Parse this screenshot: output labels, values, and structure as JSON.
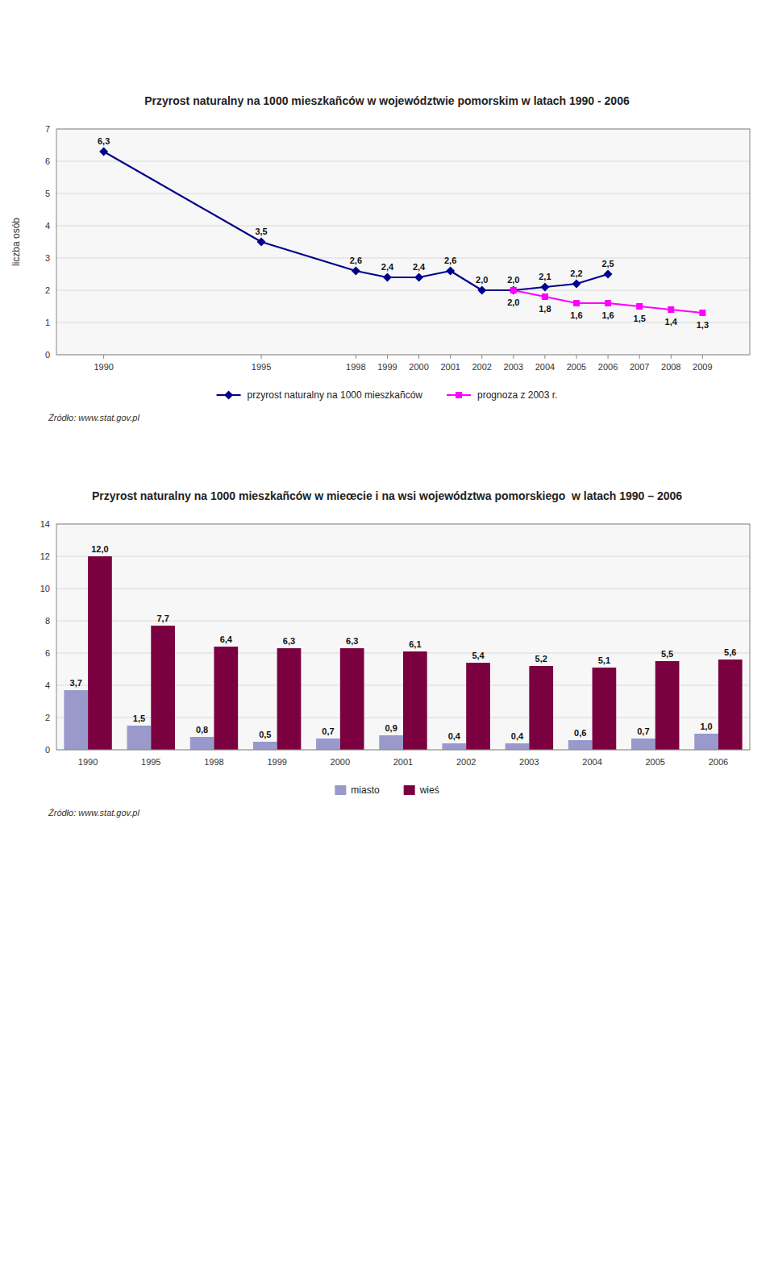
{
  "chart_data": [
    {
      "type": "line",
      "title": "Przyrost naturalny na 1000 mieszkañców w województwie pomorskim w latach 1990 - 2006",
      "y_label": "liczba osób",
      "annotations": [
        "Źródło: www.stat.gov.pl"
      ],
      "x": [
        1990,
        1995,
        1998,
        1999,
        2000,
        2001,
        2002,
        2003,
        2004,
        2005,
        2006,
        2007,
        2008,
        2009
      ],
      "series": [
        {
          "name": "przyrost naturalny na 1000 mieszkañców",
          "color": "#00008B",
          "marker": "diamond",
          "values": [
            6.3,
            3.5,
            2.6,
            2.4,
            2.4,
            2.6,
            2.0,
            2.0,
            2.1,
            2.2,
            2.5,
            null,
            null,
            null
          ],
          "value_labels": [
            "6,3",
            "3,5",
            "2,6",
            "2,4",
            "2,4",
            "2,6",
            "2,0",
            "2,0",
            "2,1",
            "2,2",
            "2,5",
            null,
            null,
            null
          ]
        },
        {
          "name": "prognoza z 2003 r.",
          "color": "#FF00FF",
          "marker": "square",
          "values": [
            null,
            null,
            null,
            null,
            null,
            null,
            null,
            2.0,
            1.8,
            1.6,
            1.6,
            1.5,
            1.4,
            1.3
          ],
          "value_labels": [
            null,
            null,
            null,
            null,
            null,
            null,
            null,
            "2,0",
            "1,8",
            "1,6",
            "1,6",
            "1,5",
            "1,4",
            "1,3"
          ]
        }
      ],
      "xlim": [
        1988.5,
        2010.5
      ],
      "xticks": [
        1990,
        1995,
        1998,
        1999,
        2000,
        2001,
        2002,
        2003,
        2004,
        2005,
        2006,
        2007,
        2008,
        2009
      ],
      "ylim": [
        0,
        7
      ],
      "yticks": [
        0,
        1,
        2,
        3,
        4,
        5,
        6,
        7
      ],
      "grid": true,
      "legend": "bottom",
      "data_labels": true
    },
    {
      "type": "bar",
      "title": "Przyrost naturalny na 1000 mieszkañców w mieœcie i na wsi województwa pomorskiego  w latach 1990 – 2006",
      "annotations": [
        "Źródło: www.stat.gov.pl"
      ],
      "categories": [
        "1990",
        "1995",
        "1998",
        "1999",
        "2000",
        "2001",
        "2002",
        "2003",
        "2004",
        "2005",
        "2006"
      ],
      "series": [
        {
          "name": "miasto",
          "color": "#9999CC",
          "values": [
            3.7,
            1.5,
            0.8,
            0.5,
            0.7,
            0.9,
            0.4,
            0.4,
            0.6,
            0.7,
            1.0
          ],
          "value_labels": [
            "3,7",
            "1,5",
            "0,8",
            "0,5",
            "0,7",
            "0,9",
            "0,4",
            "0,4",
            "0,6",
            "0,7",
            "1,0"
          ]
        },
        {
          "name": "wieś",
          "color": "#7B0040",
          "values": [
            12.0,
            7.7,
            6.4,
            6.3,
            6.3,
            6.1,
            5.4,
            5.2,
            5.1,
            5.5,
            5.6
          ],
          "value_labels": [
            "12,0",
            "7,7",
            "6,4",
            "6,3",
            "6,3",
            "6,1",
            "5,4",
            "5,2",
            "5,1",
            "5,5",
            "5,6"
          ]
        }
      ],
      "ylim": [
        0,
        14
      ],
      "yticks": [
        0,
        2,
        4,
        6,
        8,
        10,
        12,
        14
      ],
      "grid": true,
      "legend": "bottom",
      "data_labels": true
    }
  ]
}
